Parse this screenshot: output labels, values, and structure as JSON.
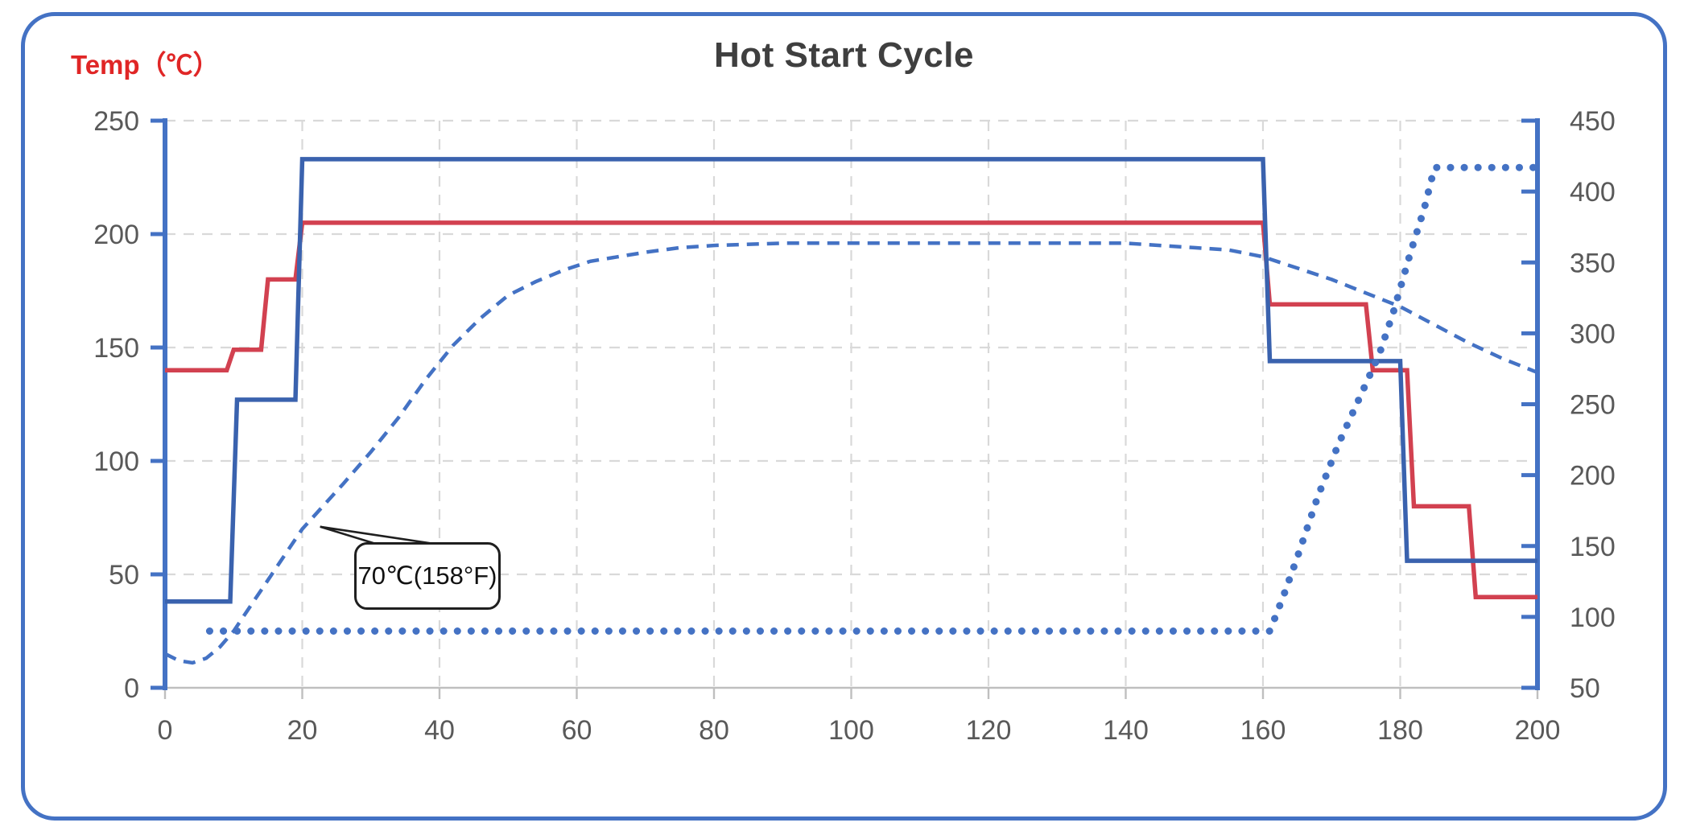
{
  "chart_data": {
    "type": "line",
    "title": "Hot Start Cycle",
    "ylabel_left": "Temp（℃）",
    "xlabel": "",
    "xlim": [
      0,
      200
    ],
    "ylim_left": [
      0,
      250
    ],
    "ylim_right": [
      50,
      450
    ],
    "x_ticks": [
      0,
      20,
      40,
      60,
      80,
      100,
      120,
      140,
      160,
      180,
      200
    ],
    "left_ticks": [
      0,
      50,
      100,
      150,
      200,
      250
    ],
    "right_ticks": [
      50,
      100,
      150,
      200,
      250,
      300,
      350,
      400,
      450
    ],
    "grid": true,
    "legend": "none",
    "colors": {
      "axis": "#4472c4",
      "grid": "#d9d9d9",
      "x_axis_line": "#bfbfbf",
      "tick_label": "#595959",
      "title": "#3f3f3f",
      "ylabel": "#e02626",
      "annotation_border": "#1f1f1f",
      "series_red": "#d24150",
      "series_blue_solid": "#3a62ae",
      "series_blue_dashed": "#4472c4",
      "series_blue_dotted": "#4472c4"
    },
    "annotation": {
      "text": "70℃(158°F)",
      "target_x": 22.6,
      "target_y": 71
    },
    "series": [
      {
        "name": "red-step-profile",
        "axis": "left",
        "style": "solid",
        "color": "#d24150",
        "points": [
          [
            0,
            140
          ],
          [
            9,
            140
          ],
          [
            10,
            149
          ],
          [
            14,
            149
          ],
          [
            15,
            180
          ],
          [
            19,
            180
          ],
          [
            20,
            205
          ],
          [
            160,
            205
          ],
          [
            161,
            169
          ],
          [
            175,
            169
          ],
          [
            176,
            140
          ],
          [
            181,
            140
          ],
          [
            182,
            80
          ],
          [
            190,
            80
          ],
          [
            191,
            40
          ],
          [
            200,
            40
          ]
        ]
      },
      {
        "name": "blue-step-profile",
        "axis": "left",
        "style": "solid",
        "color": "#3a62ae",
        "points": [
          [
            0,
            38
          ],
          [
            9.5,
            38
          ],
          [
            10.5,
            127
          ],
          [
            19,
            127
          ],
          [
            20,
            233
          ],
          [
            160,
            233
          ],
          [
            161,
            144
          ],
          [
            180,
            144
          ],
          [
            181,
            56
          ],
          [
            200,
            56
          ]
        ]
      },
      {
        "name": "blue-dashed-actual-temp",
        "axis": "left",
        "style": "dashed",
        "color": "#4472c4",
        "points": [
          [
            0,
            15
          ],
          [
            2,
            12
          ],
          [
            4,
            11
          ],
          [
            6,
            13
          ],
          [
            8,
            18
          ],
          [
            10,
            25
          ],
          [
            12,
            34
          ],
          [
            14,
            43
          ],
          [
            16,
            52
          ],
          [
            18,
            61
          ],
          [
            20,
            70
          ],
          [
            23,
            80
          ],
          [
            26,
            90
          ],
          [
            30,
            104
          ],
          [
            34,
            119
          ],
          [
            38,
            136
          ],
          [
            42,
            151
          ],
          [
            46,
            163
          ],
          [
            50,
            173
          ],
          [
            54,
            179
          ],
          [
            58,
            184
          ],
          [
            62,
            188
          ],
          [
            66,
            190
          ],
          [
            70,
            192
          ],
          [
            75,
            194
          ],
          [
            80,
            195
          ],
          [
            90,
            196
          ],
          [
            100,
            196
          ],
          [
            120,
            196
          ],
          [
            140,
            196
          ],
          [
            150,
            194
          ],
          [
            155,
            193
          ],
          [
            160,
            190
          ],
          [
            165,
            185
          ],
          [
            170,
            180
          ],
          [
            175,
            174
          ],
          [
            180,
            168
          ],
          [
            185,
            160
          ],
          [
            190,
            152
          ],
          [
            195,
            145
          ],
          [
            200,
            139
          ]
        ]
      },
      {
        "name": "blue-dotted-profile",
        "axis": "right",
        "style": "dotted",
        "color": "#4472c4",
        "points": [
          [
            6.5,
            90
          ],
          [
            161,
            90
          ],
          [
            163,
            115
          ],
          [
            165,
            142
          ],
          [
            168,
            185
          ],
          [
            171,
            222
          ],
          [
            174.5,
            259
          ],
          [
            177,
            286
          ],
          [
            179,
            315
          ],
          [
            181.5,
            357
          ],
          [
            183.5,
            388
          ],
          [
            185,
            417
          ],
          [
            200,
            417
          ]
        ]
      }
    ]
  }
}
